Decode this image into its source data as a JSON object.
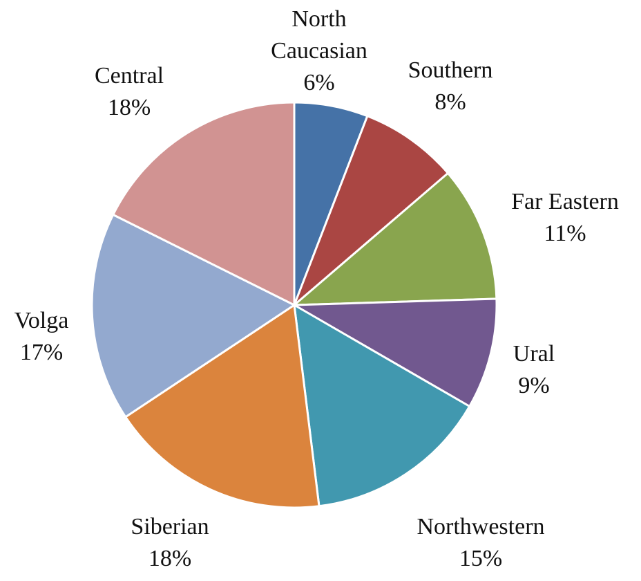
{
  "chart_data": {
    "type": "pie",
    "categories": [
      "North Caucasian",
      "Southern",
      "Far Eastern",
      "Ural",
      "Northwestern",
      "Siberian",
      "Volga",
      "Central"
    ],
    "values": [
      6,
      8,
      11,
      9,
      15,
      18,
      17,
      18
    ],
    "value_labels": [
      "6%",
      "8%",
      "11%",
      "9%",
      "15%",
      "18%",
      "17%",
      "18%"
    ],
    "colors": [
      "#4572a7",
      "#aa4643",
      "#89a54e",
      "#71588f",
      "#4198af",
      "#db843d",
      "#93a9cf",
      "#d19392"
    ]
  }
}
